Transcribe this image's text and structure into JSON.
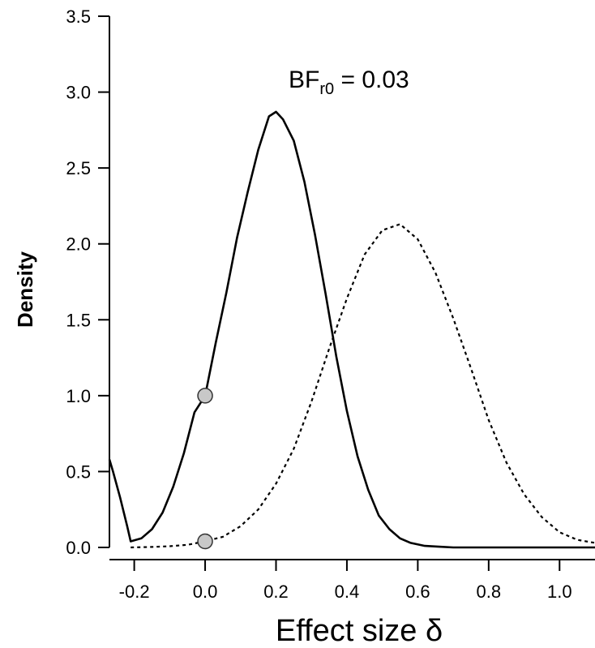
{
  "chart_data": {
    "type": "line",
    "xlabel": "Effect size δ",
    "ylabel": "Density",
    "xlim": [
      -0.27,
      1.1
    ],
    "ylim": [
      0,
      3.5
    ],
    "xticks": [
      -0.2,
      0.0,
      0.2,
      0.4,
      0.6,
      0.8,
      1.0
    ],
    "xtick_labels": [
      "-0.2",
      "0.0",
      "0.2",
      "0.4",
      "0.6",
      "0.8",
      "1.0"
    ],
    "yticks": [
      0.0,
      0.5,
      1.0,
      1.5,
      2.0,
      2.5,
      3.0,
      3.5
    ],
    "ytick_labels": [
      "0.0",
      "0.5",
      "1.0",
      "1.5",
      "2.0",
      "2.5",
      "3.0",
      "3.5"
    ],
    "grid": false,
    "annotation": {
      "prefix": "BF",
      "subscript": "r0",
      "suffix": " = 0.03"
    },
    "series": [
      {
        "style": "solid",
        "x": [
          -0.27,
          -0.26,
          -0.24,
          -0.22,
          -0.21,
          -0.18,
          -0.15,
          -0.12,
          -0.09,
          -0.06,
          -0.03,
          0.0,
          0.03,
          0.06,
          0.09,
          0.12,
          0.15,
          0.18,
          0.2,
          0.22,
          0.25,
          0.28,
          0.31,
          0.34,
          0.37,
          0.4,
          0.43,
          0.46,
          0.49,
          0.52,
          0.55,
          0.58,
          0.62,
          0.66,
          0.7,
          0.75,
          0.8,
          0.9,
          1.0,
          1.1
        ],
        "y": [
          0.58,
          0.5,
          0.33,
          0.14,
          0.04,
          0.06,
          0.12,
          0.23,
          0.4,
          0.62,
          0.89,
          1.0,
          1.35,
          1.68,
          2.04,
          2.34,
          2.62,
          2.84,
          2.87,
          2.82,
          2.68,
          2.41,
          2.06,
          1.67,
          1.26,
          0.9,
          0.6,
          0.38,
          0.21,
          0.12,
          0.06,
          0.03,
          0.01,
          0.005,
          0.0,
          0.0,
          0.0,
          0.0,
          0.0,
          0.0
        ]
      },
      {
        "style": "dotted",
        "x": [
          -0.21,
          -0.15,
          -0.1,
          -0.05,
          0.0,
          0.05,
          0.1,
          0.15,
          0.2,
          0.25,
          0.3,
          0.35,
          0.4,
          0.45,
          0.5,
          0.55,
          0.6,
          0.65,
          0.7,
          0.75,
          0.8,
          0.85,
          0.9,
          0.95,
          1.0,
          1.05,
          1.1
        ],
        "y": [
          0.0,
          0.003,
          0.008,
          0.017,
          0.04,
          0.07,
          0.14,
          0.25,
          0.42,
          0.65,
          0.96,
          1.31,
          1.64,
          1.93,
          2.09,
          2.13,
          2.03,
          1.81,
          1.51,
          1.18,
          0.84,
          0.56,
          0.35,
          0.2,
          0.1,
          0.05,
          0.03
        ]
      }
    ],
    "points": [
      {
        "x": 0.0,
        "y": 1.0,
        "color": "#c8c8c8"
      },
      {
        "x": 0.0,
        "y": 0.04,
        "color": "#c8c8c8"
      }
    ]
  }
}
